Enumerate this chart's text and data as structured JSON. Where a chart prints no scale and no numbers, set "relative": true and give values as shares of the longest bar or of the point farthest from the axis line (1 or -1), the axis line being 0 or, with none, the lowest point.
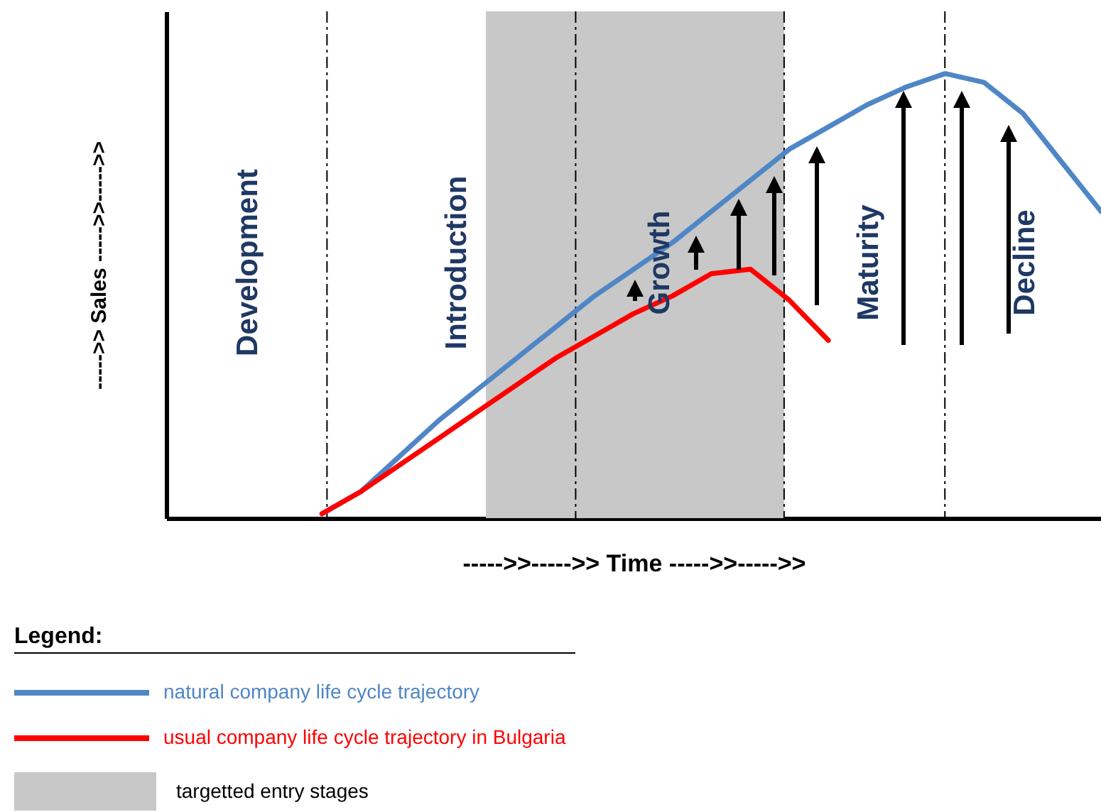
{
  "chart_data": {
    "type": "line",
    "relative": true,
    "xlabel": "----->>----->>  Time  ----->>----->>",
    "ylabel": "----->>  Sales  ----->>----->>",
    "legend_title": "Legend:",
    "legend": "bottom left",
    "categories": [
      null,
      null,
      null,
      null,
      null,
      null,
      null,
      null,
      null,
      null,
      null,
      null,
      null,
      null,
      null,
      null,
      null,
      null,
      null,
      null,
      null,
      null,
      null,
      null,
      null
    ],
    "series": [
      {
        "name": "natural company life cycle trajectory",
        "color": "#4f86c6",
        "values": [
          null,
          null,
          null,
          null,
          0.01,
          0.06,
          0.14,
          0.22,
          0.29,
          0.36,
          0.43,
          0.5,
          0.56,
          0.62,
          0.69,
          0.76,
          0.83,
          0.88,
          0.93,
          0.97,
          1,
          0.98,
          0.91,
          0.8,
          0.69
        ]
      },
      {
        "name": "usual company life cycle trajectory in Bulgaria",
        "color": "#ff0000",
        "values": [
          null,
          null,
          null,
          null,
          0.01,
          0.06,
          0.12,
          0.18,
          0.24,
          0.3,
          0.36,
          0.41,
          0.46,
          0.5,
          0.55,
          0.56,
          0.49,
          0.4,
          null,
          null,
          null,
          null,
          null,
          null,
          null
        ]
      }
    ],
    "annotations": [
      "Development",
      "Introduction",
      "Growth",
      "Maturity",
      "Decline",
      "targetted entry stages"
    ]
  }
}
